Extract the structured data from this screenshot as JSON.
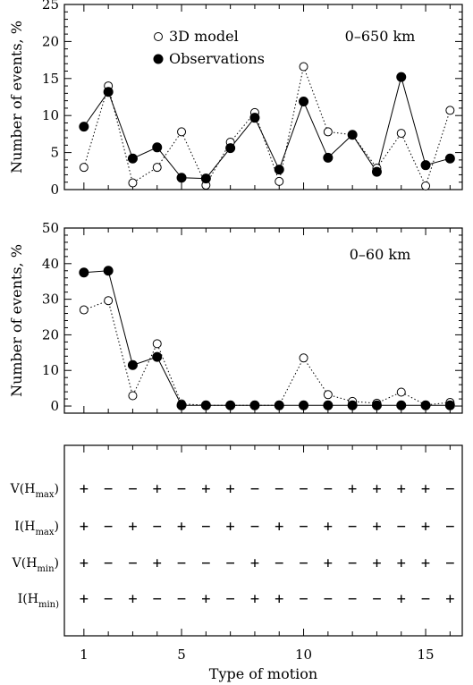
{
  "chart_data": [
    {
      "type": "line",
      "title": "",
      "annotation": "0–650 km",
      "ylabel": "Number of events, %",
      "xlabel": "",
      "xlim": [
        0.2,
        16.5
      ],
      "ylim": [
        0,
        25
      ],
      "yticks": [
        0,
        5,
        10,
        15,
        20,
        25
      ],
      "legend": {
        "placement": "top-center",
        "entries": [
          "3D model",
          "Observations"
        ]
      },
      "x": [
        1,
        2,
        3,
        4,
        5,
        6,
        7,
        8,
        9,
        10,
        11,
        12,
        13,
        14,
        15,
        16
      ],
      "series": [
        {
          "name": "3D model",
          "marker": "open-circle",
          "line": "dotted",
          "values": [
            3.0,
            14.0,
            0.9,
            3.0,
            7.8,
            0.6,
            6.4,
            10.4,
            1.1,
            16.6,
            7.8,
            7.4,
            2.9,
            7.6,
            0.5,
            10.7
          ]
        },
        {
          "name": "Observations",
          "marker": "filled-circle",
          "line": "solid",
          "values": [
            8.5,
            13.2,
            4.2,
            5.7,
            1.6,
            1.5,
            5.6,
            9.7,
            2.7,
            11.9,
            4.3,
            7.4,
            2.4,
            15.2,
            3.3,
            4.2
          ]
        }
      ]
    },
    {
      "type": "line",
      "title": "",
      "annotation": "0–60 km",
      "ylabel": "Number of events, %",
      "xlabel": "",
      "xlim": [
        0.2,
        16.5
      ],
      "ylim": [
        -2,
        50
      ],
      "yticks": [
        0,
        10,
        20,
        30,
        40,
        50
      ],
      "x": [
        1,
        2,
        3,
        4,
        5,
        6,
        7,
        8,
        9,
        10,
        11,
        12,
        13,
        14,
        15,
        16
      ],
      "series": [
        {
          "name": "3D model",
          "marker": "open-circle",
          "line": "dotted",
          "values": [
            27.0,
            29.6,
            2.9,
            17.5,
            0.6,
            0.2,
            0.2,
            0.2,
            0.2,
            13.5,
            3.2,
            1.3,
            0.8,
            3.9,
            0.3,
            1.0
          ]
        },
        {
          "name": "Observations",
          "marker": "filled-circle",
          "line": "solid",
          "values": [
            37.5,
            38.0,
            11.5,
            13.8,
            0.2,
            0.2,
            0.2,
            0.2,
            0.2,
            0.2,
            0.2,
            0.2,
            0.2,
            0.2,
            0.2,
            0.2
          ]
        }
      ]
    },
    {
      "type": "table",
      "title": "",
      "xlabel": "Type of motion",
      "xlim": [
        0.2,
        16.5
      ],
      "xticks": [
        1,
        5,
        10,
        15
      ],
      "x": [
        1,
        2,
        3,
        4,
        5,
        6,
        7,
        8,
        9,
        10,
        11,
        12,
        13,
        14,
        15,
        16
      ],
      "rows": [
        {
          "label": "V(H",
          "sub": "max",
          "close": ")",
          "signs": [
            "+",
            "−",
            "−",
            "+",
            "−",
            "+",
            "+",
            "−",
            "−",
            "−",
            "−",
            "+",
            "+",
            "+",
            "+",
            "−"
          ]
        },
        {
          "label": "I(H",
          "sub": "max",
          "close": ")",
          "signs": [
            "+",
            "−",
            "+",
            "−",
            "+",
            "−",
            "+",
            "−",
            "+",
            "−",
            "+",
            "−",
            "+",
            "−",
            "+",
            "−"
          ]
        },
        {
          "label": "V(H",
          "sub": "min",
          "close": ")",
          "signs": [
            "+",
            "−",
            "−",
            "+",
            "−",
            "−",
            "−",
            "+",
            "−",
            "−",
            "+",
            "−",
            "+",
            "+",
            "+",
            "−"
          ]
        },
        {
          "label": "I(H",
          "sub": "min)",
          "close": "",
          "signs": [
            "+",
            "−",
            "+",
            "−",
            "−",
            "+",
            "−",
            "+",
            "+",
            "−",
            "−",
            "−",
            "−",
            "+",
            "−",
            "+"
          ]
        }
      ]
    }
  ]
}
